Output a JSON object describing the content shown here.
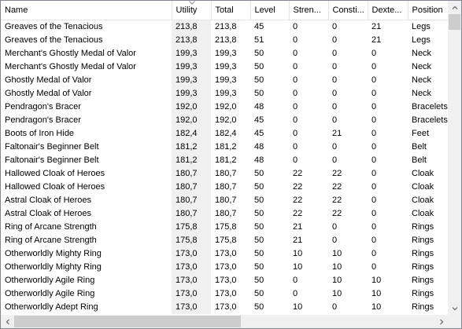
{
  "columns": [
    "Name",
    "Utility",
    "Total",
    "Level",
    "Stren...",
    "Consti...",
    "Dexte...",
    "Position"
  ],
  "sorted_column_index": 1,
  "rows": [
    [
      "Greaves of the Tenacious",
      "213,8",
      "213,8",
      "45",
      "0",
      "0",
      "21",
      "Legs"
    ],
    [
      "Greaves of the Tenacious",
      "213,8",
      "213,8",
      "51",
      "0",
      "0",
      "21",
      "Legs"
    ],
    [
      "Merchant's Ghostly Medal of Valor",
      "199,3",
      "199,3",
      "50",
      "0",
      "0",
      "0",
      "Neck"
    ],
    [
      "Merchant's Ghostly Medal of Valor",
      "199,3",
      "199,3",
      "50",
      "0",
      "0",
      "0",
      "Neck"
    ],
    [
      "Ghostly Medal of Valor",
      "199,3",
      "199,3",
      "50",
      "0",
      "0",
      "0",
      "Neck"
    ],
    [
      "Ghostly Medal of Valor",
      "199,3",
      "199,3",
      "50",
      "0",
      "0",
      "0",
      "Neck"
    ],
    [
      "Pendragon's Bracer",
      "192,0",
      "192,0",
      "48",
      "0",
      "0",
      "0",
      "Bracelets"
    ],
    [
      "Pendragon's Bracer",
      "192,0",
      "192,0",
      "45",
      "0",
      "0",
      "0",
      "Bracelets"
    ],
    [
      "Boots of Iron Hide",
      "182,4",
      "182,4",
      "45",
      "0",
      "21",
      "0",
      "Feet"
    ],
    [
      "Faltonair's Beginner Belt",
      "181,2",
      "181,2",
      "48",
      "0",
      "0",
      "0",
      "Belt"
    ],
    [
      "Faltonair's Beginner Belt",
      "181,2",
      "181,2",
      "48",
      "0",
      "0",
      "0",
      "Belt"
    ],
    [
      "Hallowed Cloak of Heroes",
      "180,7",
      "180,7",
      "50",
      "22",
      "22",
      "0",
      "Cloak"
    ],
    [
      "Hallowed Cloak of Heroes",
      "180,7",
      "180,7",
      "50",
      "22",
      "22",
      "0",
      "Cloak"
    ],
    [
      "Astral Cloak of Heroes",
      "180,7",
      "180,7",
      "50",
      "22",
      "22",
      "0",
      "Cloak"
    ],
    [
      "Astral Cloak of Heroes",
      "180,7",
      "180,7",
      "50",
      "22",
      "22",
      "0",
      "Cloak"
    ],
    [
      "Ring of Arcane Strength",
      "175,8",
      "175,8",
      "50",
      "21",
      "0",
      "0",
      "Rings"
    ],
    [
      "Ring of Arcane Strength",
      "175,8",
      "175,8",
      "50",
      "21",
      "0",
      "0",
      "Rings"
    ],
    [
      "Otherworldly Mighty Ring",
      "173,0",
      "173,0",
      "50",
      "10",
      "10",
      "0",
      "Rings"
    ],
    [
      "Otherworldly Mighty Ring",
      "173,0",
      "173,0",
      "50",
      "10",
      "10",
      "0",
      "Rings"
    ],
    [
      "Otherworldly Agile Ring",
      "173,0",
      "173,0",
      "50",
      "0",
      "10",
      "10",
      "Rings"
    ],
    [
      "Otherworldly Agile Ring",
      "173,0",
      "173,0",
      "50",
      "0",
      "10",
      "10",
      "Rings"
    ],
    [
      "Otherworldly Adept Ring",
      "173,0",
      "173,0",
      "50",
      "10",
      "0",
      "10",
      "Rings"
    ]
  ],
  "icons": {
    "sort": "chevron-down-icon",
    "scroll_up": "arrow-up-icon",
    "scroll_down": "arrow-down-icon",
    "scroll_left": "arrow-left-icon",
    "scroll_right": "arrow-right-icon"
  },
  "colors": {
    "sorted_column_bg": "#f0f0f0",
    "header_divider": "#e5e5e5",
    "scrollbar_track": "#f0f0f0",
    "scrollbar_thumb": "#cdcdcd",
    "border": "#828790"
  }
}
